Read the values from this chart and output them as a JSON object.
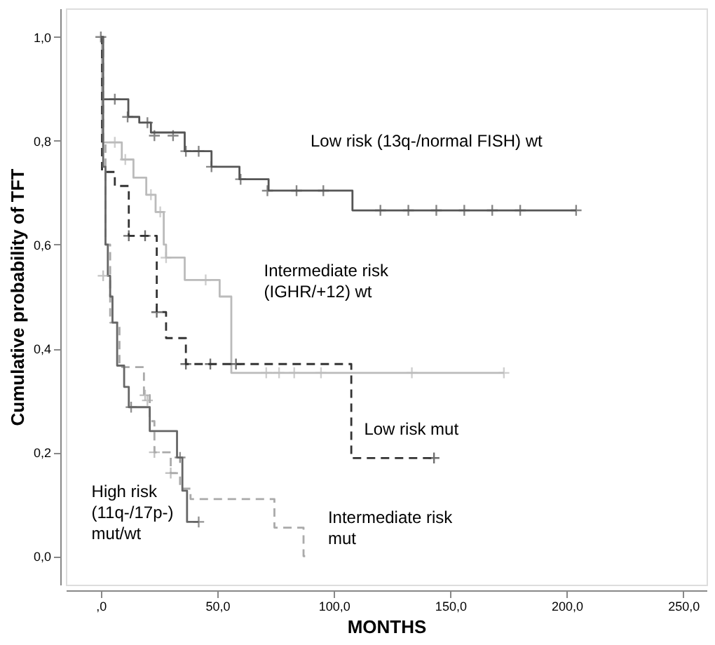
{
  "chart_data": {
    "type": "step",
    "xlabel": "MONTHS",
    "ylabel": "Cumulative probability of TFT",
    "xlim": [
      -15,
      260
    ],
    "ylim": [
      -0.055,
      1.055
    ],
    "xticks": [
      {
        "value": 0,
        "label": ",0"
      },
      {
        "value": 50,
        "label": "50,0"
      },
      {
        "value": 100,
        "label": "100,0"
      },
      {
        "value": 150,
        "label": "150,0"
      },
      {
        "value": 200,
        "label": "200,0"
      },
      {
        "value": 250,
        "label": "250,0"
      }
    ],
    "yticks": [
      {
        "value": 0,
        "label": "0,0"
      },
      {
        "value": 0.2,
        "label": "0,2"
      },
      {
        "value": 0.4,
        "label": "0,4"
      },
      {
        "value": 0.6,
        "label": "0,6"
      },
      {
        "value": 0.8,
        "label": "0,8"
      },
      {
        "value": 1.0,
        "label": "1,0"
      }
    ],
    "grid": false,
    "series": [
      {
        "name": "Low risk (13q-/normal FISH) wt",
        "color": "#555555",
        "line_style": "solid",
        "x": [
          0,
          0.5,
          11.8,
          16.5,
          21.5,
          36,
          47.5,
          59.5,
          72,
          108,
          204
        ],
        "values": [
          1.0,
          0.88,
          0.846,
          0.835,
          0.816,
          0.78,
          0.75,
          0.726,
          0.704,
          0.666,
          0.666
        ]
      },
      {
        "name": "Intermediate risk\n(IGHR/+12) wt",
        "color": "#bbbbbb",
        "line_style": "solid",
        "x": [
          0,
          0.5,
          9,
          14,
          19.5,
          23.5,
          27,
          28,
          36,
          51,
          56,
          173
        ],
        "values": [
          1.0,
          0.797,
          0.764,
          0.729,
          0.696,
          0.663,
          0.6,
          0.575,
          0.532,
          0.5,
          0.353,
          0.353
        ]
      },
      {
        "name": "Low risk mut",
        "color": "#333333",
        "line_style": "dashed",
        "x": [
          0,
          0.5,
          6,
          12,
          24,
          28,
          36.5,
          107.5,
          143
        ],
        "values": [
          1.0,
          0.74,
          0.713,
          0.617,
          0.47,
          0.42,
          0.37,
          0.189,
          0.189
        ]
      },
      {
        "name": "Intermediate risk\nmut",
        "color": "#aaaaaa",
        "line_style": "dashed",
        "x": [
          0,
          1,
          2,
          4,
          8,
          18.5,
          21,
          23,
          30,
          34,
          38.5,
          74.5,
          87,
          88
        ],
        "values": [
          1.0,
          0.8,
          0.6,
          0.45,
          0.364,
          0.31,
          0.26,
          0.2,
          0.16,
          0.13,
          0.11,
          0.055,
          0.0,
          0.0
        ]
      },
      {
        "name": "High risk\n(11q-/17p-)\nmut/wt",
        "color": "#666666",
        "line_style": "solid",
        "x": [
          0,
          1,
          2,
          3,
          4,
          5,
          7,
          10,
          12,
          21,
          32.7,
          35,
          37,
          42
        ],
        "values": [
          1.0,
          0.75,
          0.6,
          0.54,
          0.5,
          0.45,
          0.367,
          0.326,
          0.287,
          0.241,
          0.19,
          0.126,
          0.066,
          0.066
        ]
      },
      {
        "type": "scatter",
        "marker": "cross",
        "color": "#555555",
        "x": [
          0,
          6,
          11.5,
          20,
          23,
          31,
          36.5,
          42,
          47.5,
          60,
          71.5,
          84,
          95.5,
          120,
          132,
          144,
          156,
          168,
          180,
          204
        ],
        "values": [
          1.0,
          0.88,
          0.846,
          0.835,
          0.81,
          0.81,
          0.78,
          0.78,
          0.75,
          0.726,
          0.704,
          0.704,
          0.704,
          0.666,
          0.666,
          0.666,
          0.666,
          0.666,
          0.666,
          0.666
        ]
      },
      {
        "type": "scatter",
        "marker": "cross",
        "color": "#bbbbbb",
        "x": [
          6,
          10.5,
          21.5,
          25.5,
          28,
          45,
          71,
          76.5,
          83,
          94.5,
          133.5,
          173
        ],
        "values": [
          0.797,
          0.764,
          0.696,
          0.663,
          0.575,
          0.532,
          0.353,
          0.353,
          0.353,
          0.353,
          0.353,
          0.353
        ]
      },
      {
        "type": "scatter",
        "marker": "cross",
        "color": "#333333",
        "x": [
          12,
          19,
          24,
          36.5,
          47,
          58,
          143
        ],
        "values": [
          0.617,
          0.617,
          0.47,
          0.37,
          0.37,
          0.37,
          0.189
        ]
      },
      {
        "type": "scatter",
        "marker": "cross",
        "color": "#aaaaaa",
        "x": [
          1,
          19,
          20,
          23,
          30
        ],
        "values": [
          0.54,
          0.31,
          0.3,
          0.2,
          0.16
        ]
      },
      {
        "type": "scatter",
        "marker": "cross",
        "color": "#666666",
        "x": [
          13,
          34,
          42
        ],
        "values": [
          0.287,
          0.19,
          0.066
        ]
      }
    ]
  }
}
